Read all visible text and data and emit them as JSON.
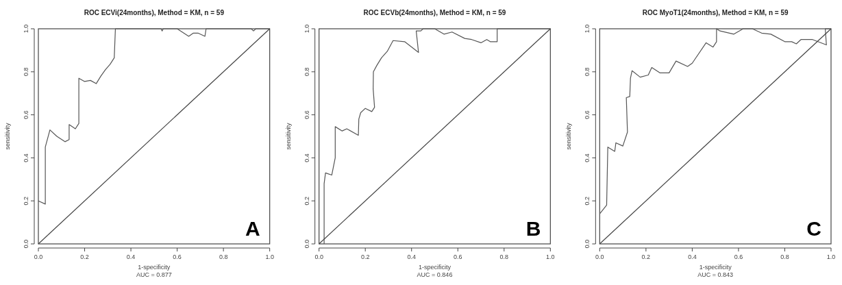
{
  "chart_data": [
    {
      "type": "line",
      "title": "ROC ECVi(24months), Method = KM, n = 59",
      "xlabel": "1-specificity",
      "ylabel": "sensitivity",
      "annotations": [
        "AUC =  0.877",
        "A"
      ],
      "xlim": [
        0,
        1
      ],
      "ylim": [
        0,
        1
      ],
      "xticks": [
        {
          "value": 0,
          "label": "0.0"
        },
        {
          "value": 0.2,
          "label": "0.2"
        },
        {
          "value": 0.4,
          "label": "0.4"
        },
        {
          "value": 0.6,
          "label": "0.6"
        },
        {
          "value": 0.8,
          "label": "0.8"
        },
        {
          "value": 1,
          "label": "1.0"
        }
      ],
      "yticks": [
        {
          "value": 0,
          "label": "0.0"
        },
        {
          "value": 0.2,
          "label": "0.2"
        },
        {
          "value": 0.4,
          "label": "0.4"
        },
        {
          "value": 0.6,
          "label": "0.6"
        },
        {
          "value": 0.8,
          "label": "0.8"
        },
        {
          "value": 1,
          "label": "1.0"
        }
      ],
      "grid": false,
      "marker": "none",
      "line_style": "solid",
      "series": [
        {
          "color": "#555555",
          "x": [
            0,
            0.03,
            0.03,
            0.03,
            0.05,
            0.08,
            0.115,
            0.133,
            0.133,
            0.16,
            0.175,
            0.175,
            0.2,
            0.225,
            0.25,
            0.27,
            0.29,
            0.31,
            0.328,
            0.333,
            0.53,
            0.535,
            0.54,
            0.6,
            0.65,
            0.67,
            0.69,
            0.72,
            0.725,
            0.92,
            0.93,
            0.94,
            1
          ],
          "values": [
            0.2,
            0.185,
            0.4,
            0.45,
            0.53,
            0.5,
            0.475,
            0.485,
            0.555,
            0.535,
            0.56,
            0.77,
            0.755,
            0.76,
            0.745,
            0.78,
            0.81,
            0.835,
            0.865,
            1,
            1,
            0.99,
            1,
            1,
            0.965,
            0.98,
            0.98,
            0.965,
            1,
            1,
            0.99,
            1,
            1
          ]
        },
        {
          "color": "#444444",
          "x": [
            0,
            1
          ],
          "values": [
            0,
            1
          ]
        }
      ]
    },
    {
      "type": "line",
      "title": "ROC ECVb(24months), Method = KM, n = 59",
      "xlabel": "1-specificity",
      "ylabel": "sensitivity",
      "annotations": [
        "AUC =  0.846",
        "B"
      ],
      "xlim": [
        0,
        1
      ],
      "ylim": [
        0,
        1
      ],
      "xticks": [
        {
          "value": 0,
          "label": "0.0"
        },
        {
          "value": 0.2,
          "label": "0.2"
        },
        {
          "value": 0.4,
          "label": "0.4"
        },
        {
          "value": 0.6,
          "label": "0.6"
        },
        {
          "value": 0.8,
          "label": "0.8"
        },
        {
          "value": 1,
          "label": "1.0"
        }
      ],
      "yticks": [
        {
          "value": 0,
          "label": "0.0"
        },
        {
          "value": 0.2,
          "label": "0.2"
        },
        {
          "value": 0.4,
          "label": "0.4"
        },
        {
          "value": 0.6,
          "label": "0.6"
        },
        {
          "value": 0.8,
          "label": "0.8"
        },
        {
          "value": 1,
          "label": "1.0"
        }
      ],
      "grid": false,
      "marker": "none",
      "line_style": "solid",
      "series": [
        {
          "color": "#555555",
          "x": [
            0.022,
            0.022,
            0.028,
            0.055,
            0.07,
            0.07,
            0.1,
            0.12,
            0.17,
            0.172,
            0.18,
            0.2,
            0.228,
            0.24,
            0.234,
            0.235,
            0.25,
            0.27,
            0.295,
            0.32,
            0.37,
            0.43,
            0.42,
            0.44,
            0.45,
            0.5,
            0.54,
            0.575,
            0.63,
            0.66,
            0.7,
            0.725,
            0.74,
            0.77,
            0.77,
            1
          ],
          "values": [
            0,
            0.28,
            0.33,
            0.32,
            0.4,
            0.545,
            0.525,
            0.535,
            0.505,
            0.58,
            0.61,
            0.63,
            0.615,
            0.635,
            0.72,
            0.8,
            0.83,
            0.865,
            0.895,
            0.945,
            0.94,
            0.89,
            0.99,
            0.99,
            1,
            1,
            0.975,
            0.985,
            0.955,
            0.95,
            0.935,
            0.95,
            0.94,
            0.94,
            1,
            1
          ]
        },
        {
          "color": "#444444",
          "x": [
            0,
            1
          ],
          "values": [
            0,
            1
          ]
        }
      ]
    },
    {
      "type": "line",
      "title": "ROC MyoT1(24months), Method = KM, n = 59",
      "xlabel": "1-specificity",
      "ylabel": "sensitivity",
      "annotations": [
        "AUC =  0.843",
        "C"
      ],
      "xlim": [
        0,
        1
      ],
      "ylim": [
        0,
        1
      ],
      "xticks": [
        {
          "value": 0,
          "label": "0.0"
        },
        {
          "value": 0.2,
          "label": "0.2"
        },
        {
          "value": 0.4,
          "label": "0.4"
        },
        {
          "value": 0.6,
          "label": "0.6"
        },
        {
          "value": 0.8,
          "label": "0.8"
        },
        {
          "value": 1,
          "label": "1.0"
        }
      ],
      "yticks": [
        {
          "value": 0,
          "label": "0.0"
        },
        {
          "value": 0.2,
          "label": "0.2"
        },
        {
          "value": 0.4,
          "label": "0.4"
        },
        {
          "value": 0.6,
          "label": "0.6"
        },
        {
          "value": 0.8,
          "label": "0.8"
        },
        {
          "value": 1,
          "label": "1.0"
        }
      ],
      "grid": false,
      "marker": "none",
      "line_style": "solid",
      "series": [
        {
          "color": "#555555",
          "x": [
            0,
            0.03,
            0.035,
            0.065,
            0.07,
            0.1,
            0.12,
            0.115,
            0.13,
            0.133,
            0.14,
            0.175,
            0.21,
            0.225,
            0.26,
            0.3,
            0.33,
            0.38,
            0.4,
            0.46,
            0.49,
            0.505,
            0.505,
            0.52,
            0.58,
            0.62,
            0.66,
            0.7,
            0.74,
            0.8,
            0.83,
            0.85,
            0.87,
            0.92,
            0.98,
            0.975,
            1
          ],
          "values": [
            0.14,
            0.18,
            0.45,
            0.43,
            0.47,
            0.455,
            0.52,
            0.68,
            0.685,
            0.77,
            0.805,
            0.775,
            0.785,
            0.82,
            0.795,
            0.795,
            0.85,
            0.825,
            0.84,
            0.935,
            0.915,
            0.94,
            1,
            0.99,
            0.975,
            1,
            1,
            0.98,
            0.975,
            0.94,
            0.94,
            0.93,
            0.95,
            0.95,
            0.925,
            1,
            1
          ]
        },
        {
          "color": "#444444",
          "x": [
            0,
            1
          ],
          "values": [
            0,
            1
          ]
        }
      ]
    }
  ]
}
